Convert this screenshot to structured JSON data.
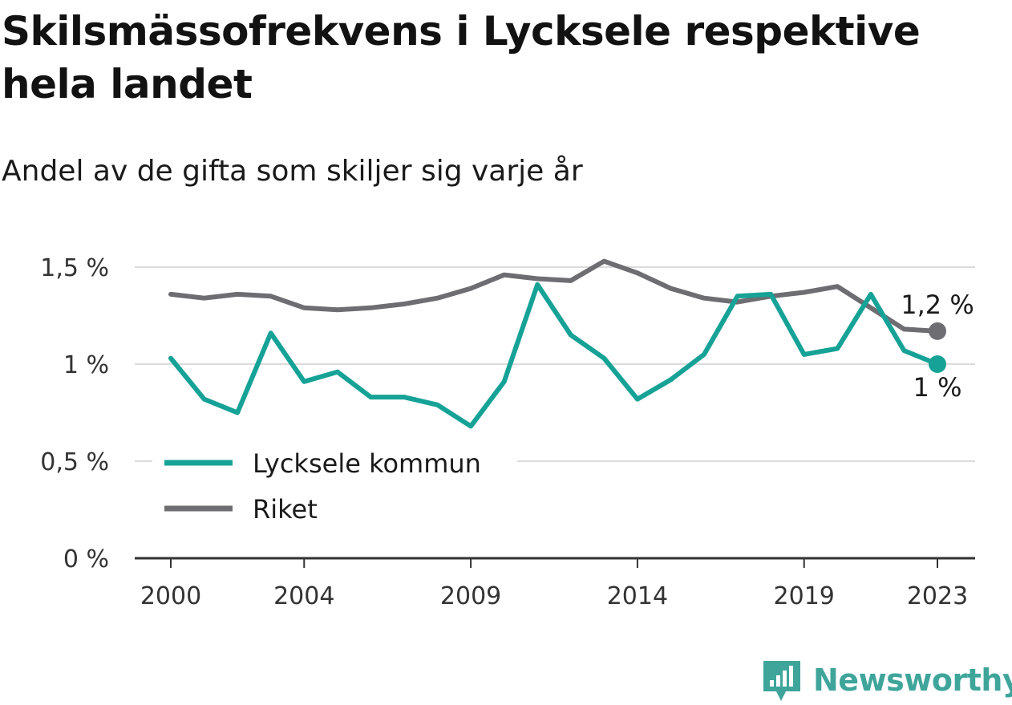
{
  "title": "Skilsmässofrekvens i Lycksele respektive hela landet",
  "subtitle": "Andel av de gifta som skiljer sig varje år",
  "brand": {
    "name": "Newsworthy"
  },
  "chart_data": {
    "type": "line",
    "x": [
      2000,
      2001,
      2002,
      2003,
      2004,
      2005,
      2006,
      2007,
      2008,
      2009,
      2010,
      2011,
      2012,
      2013,
      2014,
      2015,
      2016,
      2017,
      2018,
      2019,
      2020,
      2021,
      2022,
      2023
    ],
    "x_ticks": [
      "2000",
      "2004",
      "2009",
      "2014",
      "2019",
      "2023"
    ],
    "x_tick_values": [
      2000,
      2004,
      2009,
      2014,
      2019,
      2023
    ],
    "y_ticks": [
      "0 %",
      "0,5 %",
      "1 %",
      "1,5 %"
    ],
    "y_tick_values": [
      0,
      0.5,
      1.0,
      1.5
    ],
    "ylim": [
      0,
      1.5
    ],
    "xlim": [
      2000,
      2023
    ],
    "grid": true,
    "legend_position": "bottom-left",
    "series": [
      {
        "name": "Lycksele kommun",
        "color": "#16a296",
        "end_label": "1 %",
        "values": [
          1.03,
          0.82,
          0.75,
          1.16,
          0.91,
          0.96,
          0.83,
          0.83,
          0.79,
          0.68,
          0.91,
          1.41,
          1.15,
          1.03,
          0.82,
          0.92,
          1.05,
          1.35,
          1.36,
          1.05,
          1.08,
          1.36,
          1.07,
          1.0
        ]
      },
      {
        "name": "Riket",
        "color": "#6e6d72",
        "end_label": "1,2 %",
        "values": [
          1.36,
          1.34,
          1.36,
          1.35,
          1.29,
          1.28,
          1.29,
          1.31,
          1.34,
          1.39,
          1.46,
          1.44,
          1.43,
          1.53,
          1.47,
          1.39,
          1.34,
          1.32,
          1.35,
          1.37,
          1.4,
          1.29,
          1.18,
          1.17
        ]
      }
    ]
  }
}
